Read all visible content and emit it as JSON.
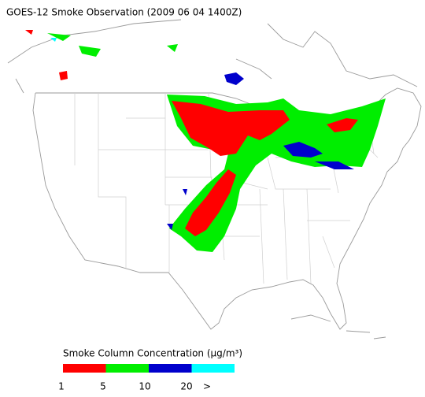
{
  "title": "GOES-12 Smoke Observation (2009 06 04  1400Z)",
  "legend": {
    "title": "Smoke Column Concentration (μg/m³)",
    "colors": [
      "#ff0000",
      "#00ee00",
      "#0000cc",
      "#00ffff"
    ],
    "ticks": [
      "1",
      "5",
      "10",
      "20",
      ">"
    ]
  }
}
